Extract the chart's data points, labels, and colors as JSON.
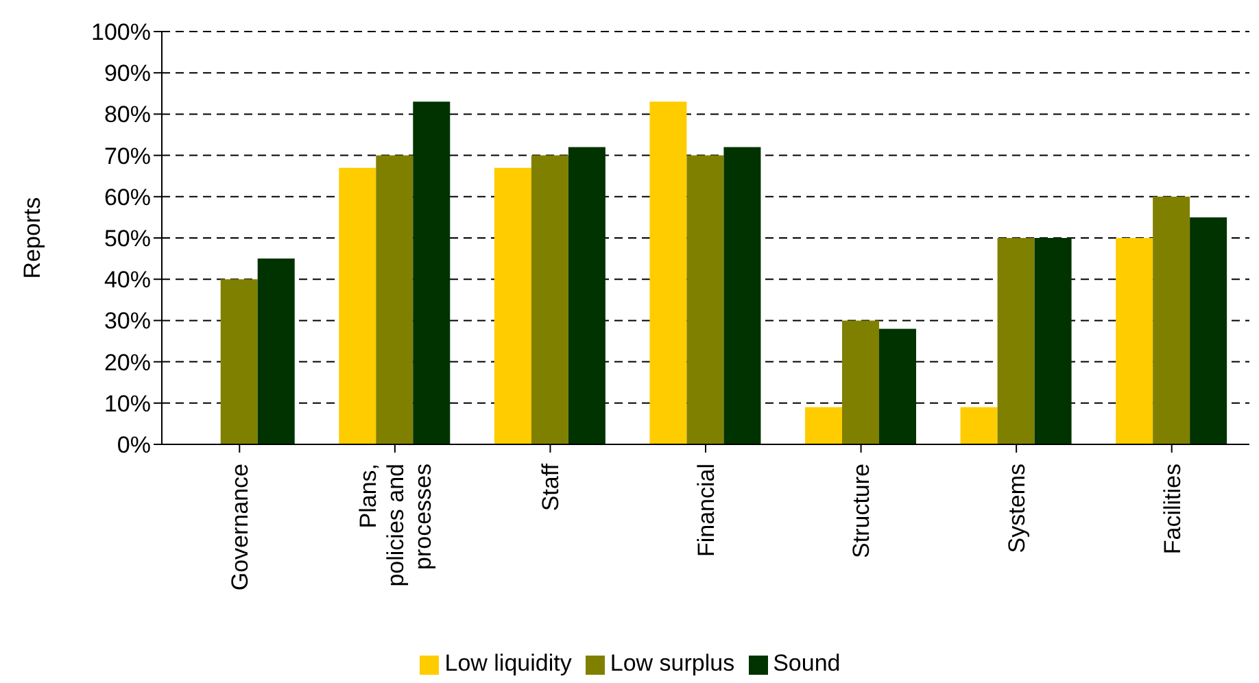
{
  "chart_data": {
    "type": "bar",
    "ylabel": "Reports",
    "categories": [
      "Governance",
      "Plans, policies and processes",
      "Staff",
      "Financial",
      "Structure",
      "Systems",
      "Facilities"
    ],
    "series": [
      {
        "name": "Low liquidity",
        "color": "#ffcc00",
        "values": [
          0,
          67,
          67,
          83,
          9,
          9,
          50
        ]
      },
      {
        "name": "Low surplus",
        "color": "#808000",
        "values": [
          40,
          70,
          70,
          70,
          30,
          50,
          60
        ]
      },
      {
        "name": "Sound",
        "color": "#003300",
        "values": [
          45,
          83,
          72,
          72,
          28,
          50,
          55
        ]
      }
    ],
    "ylim": [
      0,
      100
    ],
    "yticks": [
      {
        "value": 0,
        "label": "0%"
      },
      {
        "value": 10,
        "label": "10%"
      },
      {
        "value": 20,
        "label": "20%"
      },
      {
        "value": 30,
        "label": "30%"
      },
      {
        "value": 40,
        "label": "40%"
      },
      {
        "value": 50,
        "label": "50%"
      },
      {
        "value": 60,
        "label": "60%"
      },
      {
        "value": 70,
        "label": "70%"
      },
      {
        "value": 80,
        "label": "80%"
      },
      {
        "value": 90,
        "label": "90%"
      },
      {
        "value": 100,
        "label": "100%"
      }
    ],
    "grid": "y",
    "legend": "bottom"
  }
}
